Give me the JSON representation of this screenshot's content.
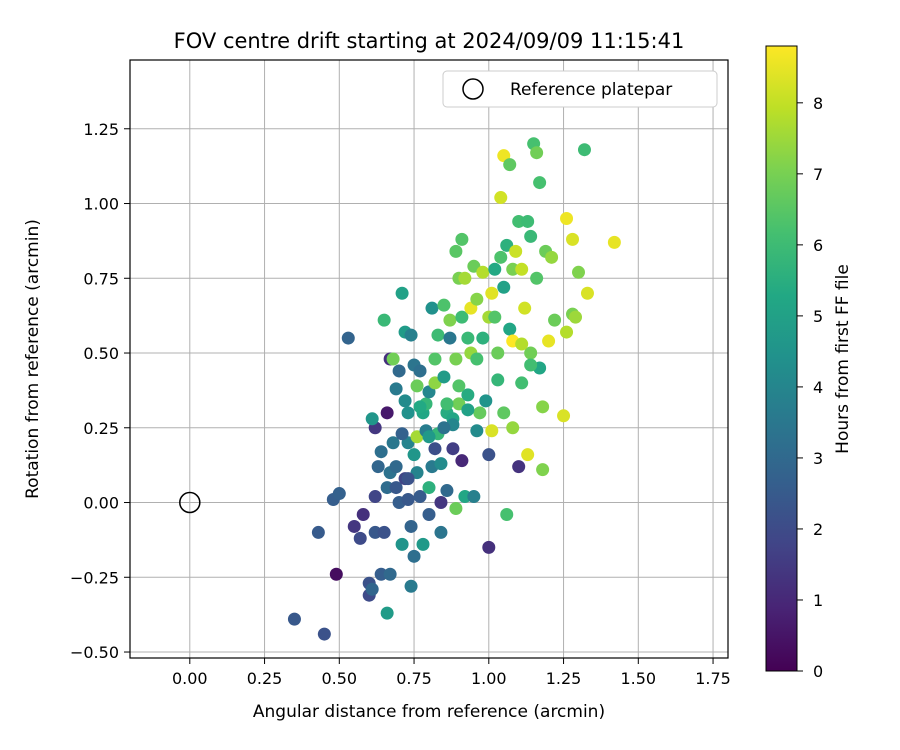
{
  "chart_data": {
    "type": "scatter",
    "title": "FOV centre drift starting at 2024/09/09 11:15:41",
    "xlabel": "Angular distance from reference (arcmin)",
    "ylabel": "Rotation from reference (arcmin)",
    "xlim": [
      -0.2,
      1.8
    ],
    "ylim": [
      -0.52,
      1.48
    ],
    "x_ticks": [
      "0.00",
      "0.25",
      "0.50",
      "0.75",
      "1.00",
      "1.25",
      "1.50",
      "1.75"
    ],
    "x_tick_values": [
      0,
      0.25,
      0.5,
      0.75,
      1.0,
      1.25,
      1.5,
      1.75
    ],
    "y_ticks": [
      "−0.50",
      "−0.25",
      "0.00",
      "0.25",
      "0.50",
      "0.75",
      "1.00",
      "1.25"
    ],
    "y_tick_values": [
      -0.5,
      -0.25,
      0,
      0.25,
      0.5,
      0.75,
      1.0,
      1.25
    ],
    "grid": true,
    "legend": {
      "position": "top-right",
      "entries": [
        "Reference platepar"
      ]
    },
    "reference_point": {
      "x": 0,
      "y": 0,
      "label": "Reference platepar"
    },
    "colorbar": {
      "label": "Hours from first FF file",
      "colormap": "viridis",
      "range": [
        0,
        8.8
      ],
      "ticks": [
        "0",
        "1",
        "2",
        "3",
        "4",
        "5",
        "6",
        "7",
        "8"
      ],
      "tick_values": [
        0,
        1,
        2,
        3,
        4,
        5,
        6,
        7,
        8
      ]
    },
    "points": [
      [
        0.35,
        -0.39,
        2.4
      ],
      [
        0.45,
        -0.44,
        2.2
      ],
      [
        0.43,
        -0.1,
        2.5
      ],
      [
        0.48,
        0.01,
        2.6
      ],
      [
        0.5,
        0.03,
        2.7
      ],
      [
        0.49,
        -0.24,
        0.3
      ],
      [
        0.53,
        0.55,
        2.8
      ],
      [
        0.55,
        -0.08,
        1.4
      ],
      [
        0.57,
        -0.12,
        2.0
      ],
      [
        0.58,
        -0.04,
        1.2
      ],
      [
        0.6,
        -0.27,
        2.2
      ],
      [
        0.6,
        -0.31,
        2.0
      ],
      [
        0.61,
        -0.29,
        2.9
      ],
      [
        0.62,
        -0.1,
        2.4
      ],
      [
        0.62,
        0.02,
        1.8
      ],
      [
        0.62,
        0.25,
        1.4
      ],
      [
        0.61,
        0.28,
        4.6
      ],
      [
        0.64,
        0.17,
        3.2
      ],
      [
        0.63,
        0.12,
        2.9
      ],
      [
        0.64,
        -0.24,
        2.6
      ],
      [
        0.65,
        -0.1,
        2.2
      ],
      [
        0.65,
        0.61,
        5.9
      ],
      [
        0.66,
        -0.37,
        4.8
      ],
      [
        0.66,
        0.05,
        3.1
      ],
      [
        0.66,
        0.3,
        0.6
      ],
      [
        0.67,
        0.48,
        1.2
      ],
      [
        0.67,
        -0.24,
        3.0
      ],
      [
        0.67,
        0.1,
        3.3
      ],
      [
        0.68,
        0.2,
        3.5
      ],
      [
        0.68,
        0.48,
        6.9
      ],
      [
        0.69,
        0.05,
        2.4
      ],
      [
        0.69,
        0.38,
        3.6
      ],
      [
        0.7,
        0.0,
        2.6
      ],
      [
        0.7,
        0.44,
        3.0
      ],
      [
        0.71,
        -0.14,
        4.5
      ],
      [
        0.71,
        0.7,
        5.0
      ],
      [
        0.72,
        0.57,
        4.8
      ],
      [
        0.72,
        0.34,
        4.2
      ],
      [
        0.72,
        0.08,
        1.8
      ],
      [
        0.73,
        0.2,
        3.9
      ],
      [
        0.73,
        0.3,
        4.4
      ],
      [
        0.73,
        0.01,
        2.4
      ],
      [
        0.74,
        -0.28,
        3.6
      ],
      [
        0.74,
        -0.08,
        2.8
      ],
      [
        0.74,
        0.56,
        3.8
      ],
      [
        0.75,
        0.16,
        4.6
      ],
      [
        0.75,
        -0.18,
        3.2
      ],
      [
        0.75,
        0.46,
        3.4
      ],
      [
        0.76,
        0.39,
        6.8
      ],
      [
        0.76,
        0.22,
        7.6
      ],
      [
        0.77,
        0.44,
        3.2
      ],
      [
        0.77,
        0.02,
        2.5
      ],
      [
        0.78,
        -0.14,
        4.7
      ],
      [
        0.78,
        0.3,
        5.2
      ],
      [
        0.79,
        0.33,
        5.8
      ],
      [
        0.8,
        0.05,
        5.6
      ],
      [
        0.8,
        0.37,
        4.0
      ],
      [
        0.8,
        -0.04,
        2.6
      ],
      [
        0.81,
        0.65,
        4.4
      ],
      [
        0.81,
        0.12,
        3.6
      ],
      [
        0.82,
        0.48,
        6.4
      ],
      [
        0.82,
        0.4,
        7.3
      ],
      [
        0.83,
        0.23,
        5.8
      ],
      [
        0.83,
        0.56,
        6.0
      ],
      [
        0.84,
        -0.1,
        3.4
      ],
      [
        0.84,
        0.13,
        4.2
      ],
      [
        0.85,
        0.66,
        6.3
      ],
      [
        0.85,
        0.42,
        4.8
      ],
      [
        0.86,
        0.3,
        5.4
      ],
      [
        0.86,
        0.04,
        3.0
      ],
      [
        0.87,
        0.61,
        7.1
      ],
      [
        0.87,
        0.55,
        3.5
      ],
      [
        0.88,
        0.18,
        1.6
      ],
      [
        0.88,
        0.28,
        5.2
      ],
      [
        0.89,
        0.84,
        6.5
      ],
      [
        0.89,
        0.48,
        7.0
      ],
      [
        0.89,
        -0.02,
        6.8
      ],
      [
        0.9,
        0.75,
        7.0
      ],
      [
        0.9,
        0.33,
        6.9
      ],
      [
        0.91,
        0.62,
        6.0
      ],
      [
        0.91,
        0.88,
        6.4
      ],
      [
        0.91,
        0.14,
        1.0
      ],
      [
        0.92,
        0.75,
        7.6
      ],
      [
        0.92,
        0.02,
        5.2
      ],
      [
        0.93,
        0.55,
        5.9
      ],
      [
        0.93,
        0.36,
        5.4
      ],
      [
        0.94,
        0.5,
        7.4
      ],
      [
        0.94,
        0.65,
        8.5
      ],
      [
        0.95,
        0.02,
        3.8
      ],
      [
        0.95,
        0.79,
        6.8
      ],
      [
        0.96,
        0.68,
        7.2
      ],
      [
        0.96,
        0.48,
        6.2
      ],
      [
        0.97,
        0.3,
        6.7
      ],
      [
        0.98,
        0.77,
        7.8
      ],
      [
        0.98,
        0.55,
        5.6
      ],
      [
        0.99,
        0.34,
        4.5
      ],
      [
        1.0,
        -0.15,
        1.2
      ],
      [
        1.0,
        0.16,
        2.2
      ],
      [
        1.0,
        0.62,
        7.6
      ],
      [
        1.01,
        0.24,
        8.3
      ],
      [
        1.01,
        0.7,
        8.4
      ],
      [
        1.02,
        0.78,
        5.3
      ],
      [
        1.02,
        0.62,
        6.4
      ],
      [
        1.03,
        0.5,
        6.8
      ],
      [
        1.04,
        0.82,
        6.3
      ],
      [
        1.04,
        1.02,
        8.2
      ],
      [
        1.05,
        1.16,
        8.6
      ],
      [
        1.05,
        0.72,
        5.0
      ],
      [
        1.06,
        -0.04,
        6.2
      ],
      [
        1.06,
        0.86,
        5.6
      ],
      [
        1.07,
        1.13,
        6.6
      ],
      [
        1.07,
        0.58,
        5.2
      ],
      [
        1.08,
        0.78,
        7.0
      ],
      [
        1.08,
        0.54,
        8.8
      ],
      [
        1.09,
        0.84,
        8.1
      ],
      [
        1.1,
        0.12,
        1.3
      ],
      [
        1.1,
        0.94,
        6.1
      ],
      [
        1.11,
        0.4,
        6.1
      ],
      [
        1.11,
        0.78,
        8.0
      ],
      [
        1.12,
        0.65,
        8.2
      ],
      [
        1.13,
        0.94,
        6.0
      ],
      [
        1.13,
        0.16,
        8.4
      ],
      [
        1.14,
        0.5,
        6.9
      ],
      [
        1.14,
        0.89,
        5.9
      ],
      [
        1.15,
        1.2,
        6.2
      ],
      [
        1.16,
        0.75,
        6.4
      ],
      [
        1.16,
        1.17,
        6.9
      ],
      [
        1.17,
        0.45,
        5.2
      ],
      [
        1.17,
        1.07,
        6.2
      ],
      [
        1.18,
        0.32,
        7.2
      ],
      [
        1.18,
        0.11,
        7.1
      ],
      [
        1.19,
        0.84,
        6.8
      ],
      [
        1.2,
        0.54,
        8.5
      ],
      [
        1.21,
        0.82,
        7.4
      ],
      [
        1.22,
        0.61,
        6.8
      ],
      [
        1.25,
        0.29,
        8.3
      ],
      [
        1.26,
        0.95,
        8.6
      ],
      [
        1.26,
        0.57,
        7.8
      ],
      [
        1.28,
        0.88,
        8.3
      ],
      [
        1.28,
        0.63,
        7.0
      ],
      [
        1.29,
        0.62,
        7.5
      ],
      [
        1.3,
        0.77,
        7.1
      ],
      [
        1.32,
        1.18,
        6.0
      ],
      [
        1.33,
        0.7,
        8.3
      ],
      [
        1.42,
        0.87,
        8.5
      ],
      [
        0.71,
        0.23,
        2.7
      ],
      [
        0.79,
        0.24,
        3.7
      ],
      [
        0.84,
        0.0,
        1.4
      ],
      [
        0.88,
        0.26,
        4.0
      ],
      [
        0.9,
        0.39,
        6.4
      ],
      [
        0.93,
        0.31,
        5.0
      ],
      [
        0.96,
        0.24,
        4.2
      ],
      [
        1.03,
        0.41,
        5.8
      ],
      [
        1.05,
        0.3,
        6.6
      ],
      [
        1.08,
        0.25,
        7.4
      ],
      [
        1.11,
        0.53,
        7.8
      ],
      [
        1.14,
        0.46,
        6.1
      ],
      [
        0.76,
        0.1,
        3.9
      ],
      [
        0.82,
        0.18,
        2.1
      ],
      [
        0.85,
        0.25,
        3.3
      ],
      [
        0.69,
        0.12,
        3.0
      ],
      [
        0.73,
        0.08,
        2.2
      ],
      [
        0.77,
        0.32,
        5.3
      ],
      [
        0.8,
        0.22,
        4.7
      ],
      [
        0.86,
        0.33,
        6.1
      ]
    ]
  }
}
